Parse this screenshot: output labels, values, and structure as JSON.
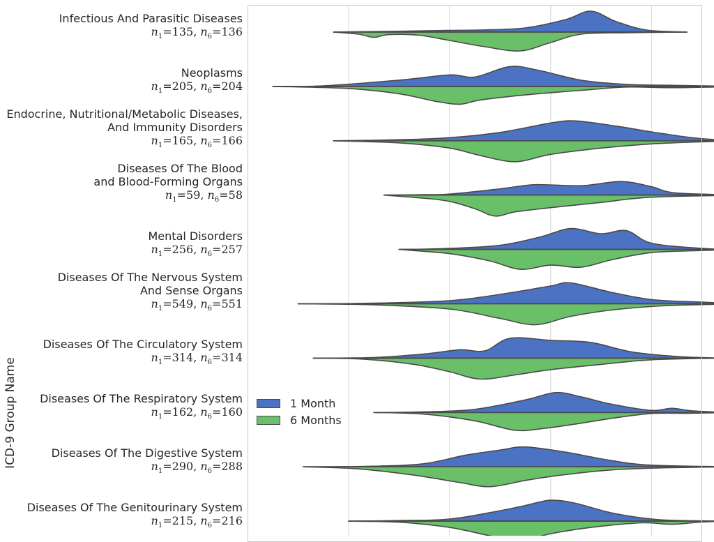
{
  "chart_data": {
    "type": "violin",
    "ylabel": "ICD-9 Group Name",
    "xlabel": "",
    "grid": true,
    "legend": {
      "position": "center-left",
      "entries": [
        {
          "label": "1 Month",
          "color": "#4c72c4"
        },
        {
          "label": "6 Months",
          "color": "#6abf69"
        }
      ]
    },
    "colors": {
      "month1": "#4c72c4",
      "month6": "#6abf69",
      "outline": "#4a4a4a",
      "grid": "#d9d9d9"
    },
    "x_range": [
      -3,
      6
    ],
    "gridlines_x": [
      -1,
      1,
      3,
      5
    ],
    "categories": [
      {
        "lines": [
          "Infectious And Parasitic Diseases"
        ],
        "n1": "135",
        "n6": "136",
        "range1": [
          -1.3,
          5.7
        ],
        "range6": [
          -1.3,
          5.7
        ],
        "month1": [
          [
            -1.3,
            0.0
          ],
          [
            -0.7,
            0.02
          ],
          [
            0.0,
            0.04
          ],
          [
            0.9,
            0.08
          ],
          [
            1.6,
            0.1
          ],
          [
            2.5,
            0.2
          ],
          [
            3.3,
            0.6
          ],
          [
            3.8,
            1.0
          ],
          [
            4.3,
            0.5
          ],
          [
            4.9,
            0.1
          ],
          [
            5.7,
            0.0
          ]
        ],
        "month6": [
          [
            -1.3,
            0.0
          ],
          [
            -0.8,
            0.1
          ],
          [
            -0.5,
            0.25
          ],
          [
            -0.2,
            0.12
          ],
          [
            0.4,
            0.15
          ],
          [
            1.0,
            0.4
          ],
          [
            1.7,
            0.7
          ],
          [
            2.4,
            0.9
          ],
          [
            3.0,
            0.5
          ],
          [
            3.6,
            0.1
          ],
          [
            4.5,
            0.03
          ],
          [
            5.7,
            0.0
          ]
        ]
      },
      {
        "lines": [
          "Neoplasms"
        ],
        "n1": "205",
        "n6": "204",
        "range1": [
          -2.5,
          6.8
        ],
        "range6": [
          -2.5,
          6.8
        ],
        "month1": [
          [
            -2.5,
            0.0
          ],
          [
            -1.5,
            0.03
          ],
          [
            0.0,
            0.3
          ],
          [
            1.0,
            0.55
          ],
          [
            1.5,
            0.45
          ],
          [
            2.2,
            0.95
          ],
          [
            2.8,
            0.75
          ],
          [
            3.6,
            0.3
          ],
          [
            4.5,
            0.1
          ],
          [
            5.5,
            0.05
          ],
          [
            6.8,
            0.0
          ]
        ],
        "month6": [
          [
            -2.5,
            0.0
          ],
          [
            -1.0,
            0.1
          ],
          [
            0.0,
            0.35
          ],
          [
            0.7,
            0.7
          ],
          [
            1.2,
            0.85
          ],
          [
            1.6,
            0.65
          ],
          [
            2.3,
            0.45
          ],
          [
            3.0,
            0.3
          ],
          [
            3.8,
            0.15
          ],
          [
            4.5,
            0.03
          ],
          [
            5.5,
            0.06
          ],
          [
            6.8,
            0.0
          ]
        ]
      },
      {
        "lines": [
          "Endocrine, Nutritional/Metabolic Diseases,",
          "And Immunity Disorders"
        ],
        "n1": "165",
        "n6": "166",
        "range1": [
          -1.3,
          6.9
        ],
        "range6": [
          -1.3,
          6.9
        ],
        "month1": [
          [
            -1.3,
            0.0
          ],
          [
            0.0,
            0.05
          ],
          [
            1.0,
            0.15
          ],
          [
            2.0,
            0.4
          ],
          [
            3.0,
            0.85
          ],
          [
            3.5,
            0.95
          ],
          [
            4.3,
            0.7
          ],
          [
            5.2,
            0.35
          ],
          [
            6.0,
            0.1
          ],
          [
            6.9,
            0.0
          ]
        ],
        "month6": [
          [
            -1.3,
            0.0
          ],
          [
            0.0,
            0.1
          ],
          [
            1.0,
            0.35
          ],
          [
            1.6,
            0.7
          ],
          [
            2.3,
            1.0
          ],
          [
            3.0,
            0.65
          ],
          [
            4.0,
            0.35
          ],
          [
            5.0,
            0.15
          ],
          [
            6.0,
            0.05
          ],
          [
            6.9,
            0.0
          ]
        ]
      },
      {
        "lines": [
          "Diseases Of The Blood",
          "and Blood-Forming Organs"
        ],
        "n1": "59",
        "n6": "58",
        "range1": [
          -0.3,
          6.9
        ],
        "range6": [
          -0.3,
          6.9
        ],
        "month1": [
          [
            -0.3,
            0.0
          ],
          [
            0.5,
            0.02
          ],
          [
            1.0,
            0.05
          ],
          [
            2.0,
            0.3
          ],
          [
            2.7,
            0.5
          ],
          [
            3.6,
            0.45
          ],
          [
            4.4,
            0.65
          ],
          [
            5.0,
            0.4
          ],
          [
            5.5,
            0.1
          ],
          [
            6.9,
            0.0
          ]
        ],
        "month6": [
          [
            -0.3,
            0.0
          ],
          [
            0.5,
            0.15
          ],
          [
            1.0,
            0.3
          ],
          [
            1.5,
            0.65
          ],
          [
            1.9,
            1.0
          ],
          [
            2.3,
            0.8
          ],
          [
            3.0,
            0.6
          ],
          [
            4.0,
            0.35
          ],
          [
            5.0,
            0.1
          ],
          [
            6.9,
            0.0
          ]
        ]
      },
      {
        "lines": [
          "Mental Disorders"
        ],
        "n1": "256",
        "n6": "257",
        "range1": [
          0.0,
          6.7
        ],
        "range6": [
          0.0,
          6.7
        ],
        "month1": [
          [
            0.0,
            0.0
          ],
          [
            1.0,
            0.05
          ],
          [
            2.0,
            0.2
          ],
          [
            2.8,
            0.6
          ],
          [
            3.4,
            1.0
          ],
          [
            4.0,
            0.75
          ],
          [
            4.5,
            0.9
          ],
          [
            5.0,
            0.3
          ],
          [
            6.0,
            0.05
          ],
          [
            6.7,
            0.0
          ]
        ],
        "month6": [
          [
            0.0,
            0.0
          ],
          [
            1.0,
            0.2
          ],
          [
            1.8,
            0.55
          ],
          [
            2.4,
            0.95
          ],
          [
            3.0,
            0.75
          ],
          [
            3.6,
            0.85
          ],
          [
            4.2,
            0.5
          ],
          [
            5.0,
            0.15
          ],
          [
            6.0,
            0.05
          ],
          [
            6.7,
            0.0
          ]
        ]
      },
      {
        "lines": [
          "Diseases Of The Nervous System",
          "And Sense Organs"
        ],
        "n1": "549",
        "n6": "551",
        "range1": [
          -2.0,
          6.8
        ],
        "range6": [
          -2.0,
          6.8
        ],
        "month1": [
          [
            -2.0,
            0.0
          ],
          [
            -0.5,
            0.03
          ],
          [
            1.0,
            0.15
          ],
          [
            2.0,
            0.45
          ],
          [
            3.0,
            0.85
          ],
          [
            3.4,
            1.0
          ],
          [
            4.2,
            0.55
          ],
          [
            5.0,
            0.2
          ],
          [
            6.0,
            0.08
          ],
          [
            6.8,
            0.0
          ]
        ],
        "month6": [
          [
            -2.0,
            0.0
          ],
          [
            -0.5,
            0.05
          ],
          [
            1.0,
            0.25
          ],
          [
            2.0,
            0.7
          ],
          [
            2.7,
            1.0
          ],
          [
            3.4,
            0.6
          ],
          [
            4.2,
            0.3
          ],
          [
            5.2,
            0.1
          ],
          [
            6.0,
            0.04
          ],
          [
            6.8,
            0.0
          ]
        ]
      },
      {
        "lines": [
          "Diseases Of The Circulatory System"
        ],
        "n1": "314",
        "n6": "314",
        "range1": [
          -1.7,
          6.4
        ],
        "range6": [
          -1.7,
          6.4
        ],
        "month1": [
          [
            -1.7,
            0.0
          ],
          [
            -0.5,
            0.03
          ],
          [
            0.5,
            0.2
          ],
          [
            1.2,
            0.4
          ],
          [
            1.7,
            0.35
          ],
          [
            2.2,
            0.95
          ],
          [
            3.0,
            0.85
          ],
          [
            3.8,
            0.75
          ],
          [
            4.6,
            0.3
          ],
          [
            5.5,
            0.08
          ],
          [
            6.4,
            0.0
          ]
        ],
        "month6": [
          [
            -1.7,
            0.0
          ],
          [
            -0.7,
            0.05
          ],
          [
            0.3,
            0.3
          ],
          [
            1.0,
            0.65
          ],
          [
            1.6,
            1.0
          ],
          [
            2.3,
            0.8
          ],
          [
            3.0,
            0.55
          ],
          [
            4.0,
            0.3
          ],
          [
            5.0,
            0.08
          ],
          [
            6.4,
            0.0
          ]
        ]
      },
      {
        "lines": [
          "Diseases Of The Respiratory System"
        ],
        "n1": "162",
        "n6": "160",
        "range1": [
          -0.5,
          6.5
        ],
        "range6": [
          -0.5,
          6.5
        ],
        "month1": [
          [
            -0.5,
            0.0
          ],
          [
            0.5,
            0.03
          ],
          [
            1.5,
            0.15
          ],
          [
            2.5,
            0.6
          ],
          [
            3.1,
            0.95
          ],
          [
            3.6,
            0.75
          ],
          [
            4.2,
            0.4
          ],
          [
            5.0,
            0.1
          ],
          [
            5.4,
            0.2
          ],
          [
            5.8,
            0.08
          ],
          [
            6.5,
            0.0
          ]
        ],
        "month6": [
          [
            -0.5,
            0.0
          ],
          [
            0.5,
            0.08
          ],
          [
            1.5,
            0.4
          ],
          [
            2.3,
            0.85
          ],
          [
            2.9,
            0.75
          ],
          [
            3.5,
            0.55
          ],
          [
            4.3,
            0.25
          ],
          [
            5.0,
            0.05
          ],
          [
            5.8,
            0.04
          ],
          [
            6.5,
            0.0
          ]
        ]
      },
      {
        "lines": [
          "Diseases Of The Digestive System"
        ],
        "n1": "290",
        "n6": "288",
        "range1": [
          -1.9,
          6.6
        ],
        "range6": [
          -1.9,
          6.6
        ],
        "month1": [
          [
            -1.9,
            0.0
          ],
          [
            -0.5,
            0.03
          ],
          [
            0.5,
            0.15
          ],
          [
            1.3,
            0.55
          ],
          [
            2.0,
            0.8
          ],
          [
            2.5,
            0.95
          ],
          [
            3.3,
            0.7
          ],
          [
            4.2,
            0.3
          ],
          [
            5.0,
            0.08
          ],
          [
            6.6,
            0.0
          ]
        ],
        "month6": [
          [
            -1.9,
            0.0
          ],
          [
            -0.8,
            0.1
          ],
          [
            0.3,
            0.4
          ],
          [
            1.2,
            0.75
          ],
          [
            1.8,
            0.95
          ],
          [
            2.5,
            0.65
          ],
          [
            3.2,
            0.4
          ],
          [
            4.2,
            0.15
          ],
          [
            5.2,
            0.05
          ],
          [
            6.6,
            0.0
          ]
        ]
      },
      {
        "lines": [
          "Diseases Of The Genitourinary System"
        ],
        "n1": "215",
        "n6": "216",
        "range1": [
          -1.0,
          6.6
        ],
        "range6": [
          -1.0,
          6.6
        ],
        "month1": [
          [
            -1.0,
            0.0
          ],
          [
            0.0,
            0.03
          ],
          [
            1.0,
            0.1
          ],
          [
            2.0,
            0.5
          ],
          [
            2.5,
            0.75
          ],
          [
            3.0,
            1.0
          ],
          [
            3.5,
            0.85
          ],
          [
            4.2,
            0.4
          ],
          [
            5.0,
            0.1
          ],
          [
            5.6,
            0.03
          ],
          [
            6.6,
            0.0
          ]
        ],
        "month6": [
          [
            -1.0,
            0.0
          ],
          [
            0.0,
            0.05
          ],
          [
            1.0,
            0.3
          ],
          [
            1.8,
            0.7
          ],
          [
            2.4,
            0.95
          ],
          [
            3.0,
            0.6
          ],
          [
            3.8,
            0.3
          ],
          [
            4.8,
            0.08
          ],
          [
            5.4,
            0.15
          ],
          [
            6.0,
            0.04
          ],
          [
            6.6,
            0.0
          ]
        ]
      }
    ]
  }
}
